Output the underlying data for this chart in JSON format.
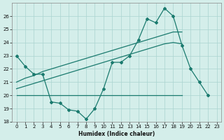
{
  "xlabel": "Humidex (Indice chaleur)",
  "x_values": [
    0,
    1,
    2,
    3,
    4,
    5,
    6,
    7,
    8,
    9,
    10,
    11,
    12,
    13,
    14,
    15,
    16,
    17,
    18,
    19,
    20,
    21,
    22,
    23
  ],
  "zigzag_y": [
    23,
    22.2,
    21.6,
    21.6,
    19.5,
    19.4,
    18.9,
    18.8,
    18.2,
    19.0,
    20.5,
    22.5,
    22.5,
    23.0,
    24.2,
    25.8,
    25.5,
    26.6,
    26.0,
    23.8,
    22.0,
    21.0,
    20.0,
    null
  ],
  "trend_high_y": [
    21.0,
    21.3,
    21.5,
    21.8,
    22.0,
    22.2,
    22.4,
    22.6,
    22.8,
    23.0,
    23.2,
    23.4,
    23.6,
    23.8,
    24.0,
    24.2,
    24.4,
    24.6,
    24.8,
    24.8,
    null,
    null,
    null,
    null
  ],
  "trend_low_y": [
    20.5,
    20.7,
    20.9,
    21.1,
    21.3,
    21.5,
    21.7,
    21.9,
    22.1,
    22.3,
    22.5,
    22.7,
    22.9,
    23.1,
    23.3,
    23.5,
    23.7,
    23.9,
    24.0,
    23.9,
    null,
    null,
    null,
    null
  ],
  "flat_y": [
    20.0,
    20.0,
    20.0,
    20.0,
    20.0,
    20.0,
    20.0,
    20.0,
    20.0,
    20.0,
    20.0,
    20.0,
    20.0,
    20.0,
    20.0,
    20.0,
    20.0,
    20.0,
    20.0,
    20.0,
    null,
    null,
    null,
    null
  ],
  "bg_color": "#d4eeea",
  "line_color": "#1a7a6e",
  "grid_color": "#aad4d0",
  "ylim": [
    18,
    27
  ],
  "yticks": [
    18,
    19,
    20,
    21,
    22,
    23,
    24,
    25,
    26
  ],
  "xlim": [
    -0.5,
    23.5
  ],
  "xticks": [
    0,
    1,
    2,
    3,
    4,
    5,
    6,
    7,
    8,
    9,
    10,
    11,
    12,
    13,
    14,
    15,
    16,
    17,
    18,
    19,
    20,
    21,
    22,
    23
  ]
}
